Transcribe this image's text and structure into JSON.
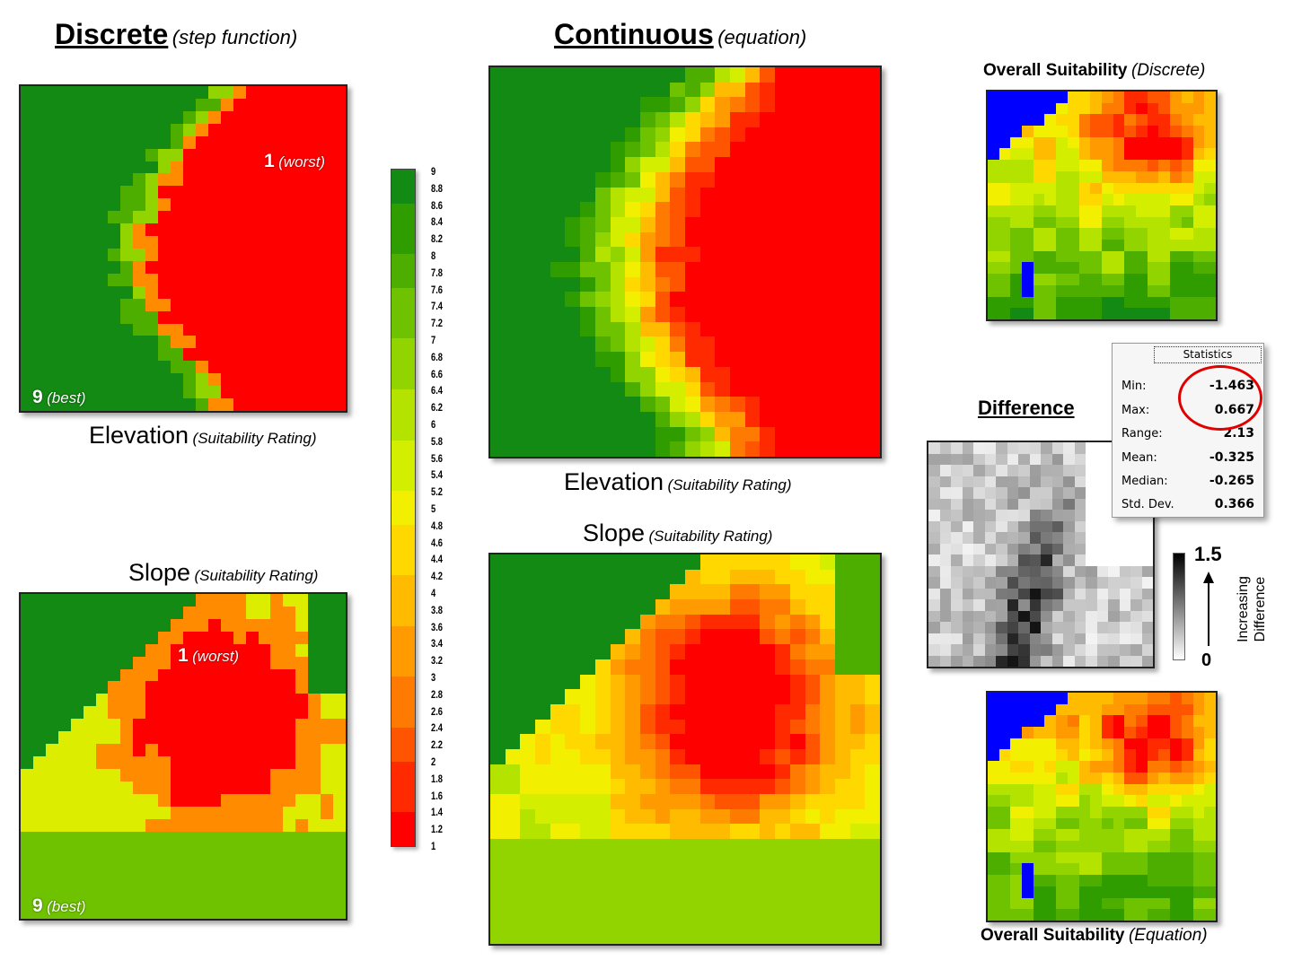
{
  "headers": {
    "discrete": {
      "main": "Discrete",
      "sub": "(step function)"
    },
    "continuous": {
      "main": "Continuous",
      "sub": "(equation)"
    }
  },
  "labels": {
    "elev_discrete": {
      "main": "Elevation",
      "sub": "(Suitability Rating)"
    },
    "slope_discrete": {
      "main": "Slope",
      "sub": "(Suitability Rating)"
    },
    "elev_continuous": {
      "main": "Elevation",
      "sub": "(Suitability Rating)"
    },
    "slope_continuous": {
      "main": "Slope",
      "sub": "(Suitability Rating)"
    },
    "overall_discrete": {
      "main": "Overall Suitability",
      "sub": "(Discrete)"
    },
    "overall_equation": {
      "main": "Overall Suitability",
      "sub": "(Equation)"
    },
    "difference": "Difference"
  },
  "annotations": {
    "worst_num": "1",
    "worst_txt": "(worst)",
    "best_num": "9",
    "best_txt": "(best)"
  },
  "scale": {
    "ticks": [
      "9",
      "8.8",
      "8.6",
      "8.4",
      "8.2",
      "8",
      "7.8",
      "7.6",
      "7.4",
      "7.2",
      "7",
      "6.8",
      "6.6",
      "6.4",
      "6.2",
      "6",
      "5.8",
      "5.6",
      "5.4",
      "5.2",
      "5",
      "4.8",
      "4.6",
      "4.4",
      "4.2",
      "4",
      "3.8",
      "3.6",
      "3.4",
      "3.2",
      "3",
      "2.8",
      "2.6",
      "2.4",
      "2.2",
      "2",
      "1.8",
      "1.6",
      "1.4",
      "1.2",
      "1"
    ],
    "colors": {
      "high": "#138a13",
      "mid_high": "#7ec800",
      "mid": "#f2f200",
      "mid_low": "#ff8a00",
      "low": "#ff0000"
    }
  },
  "statistics": {
    "title": "Statistics",
    "rows": [
      {
        "label": "Min:",
        "value": "-1.463"
      },
      {
        "label": "Max:",
        "value": "0.667"
      },
      {
        "label": "Range:",
        "value": "2.13"
      },
      {
        "label": "Mean:",
        "value": "-0.325"
      },
      {
        "label": "Median:",
        "value": "-0.265"
      },
      {
        "label": "Std. Dev.",
        "value": "0.366"
      }
    ]
  },
  "difference_legend": {
    "max": "1.5",
    "min": "0",
    "caption_line1": "Increasing",
    "caption_line2": "Difference"
  }
}
